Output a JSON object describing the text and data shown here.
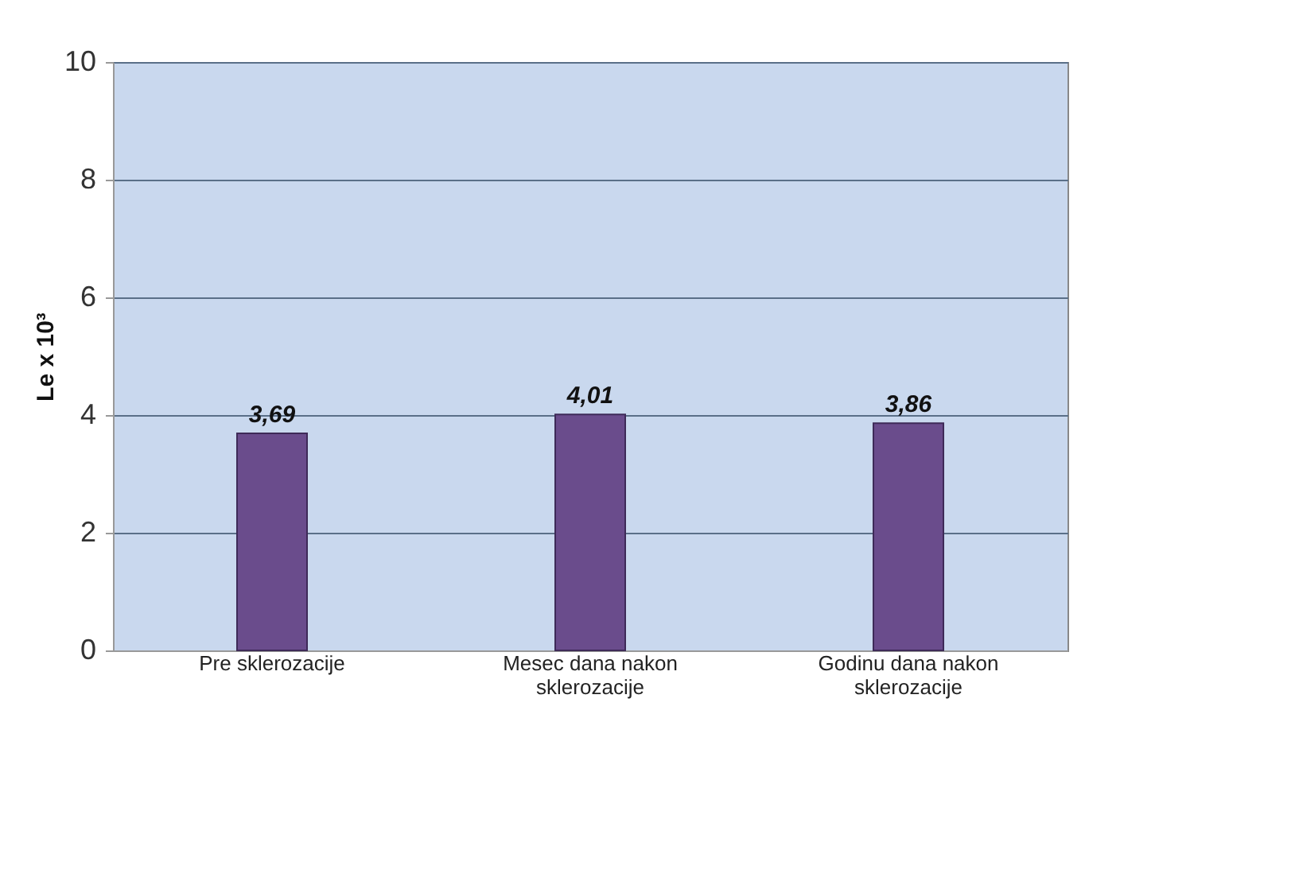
{
  "chart_data": {
    "type": "bar",
    "categories": [
      "Pre sklerozacije",
      "Mesec dana nakon sklerozacije",
      "Godinu dana nakon sklerozacije"
    ],
    "values": [
      3.69,
      4.01,
      3.86
    ],
    "color": "#6a4c8c",
    "value_labels": [
      "3,69",
      "4,01",
      "3,86"
    ],
    "ylabel": "Le x 10³",
    "ylim": [
      0,
      10
    ],
    "yticks": [
      0,
      2,
      4,
      6,
      8,
      10
    ],
    "grid": "y"
  }
}
